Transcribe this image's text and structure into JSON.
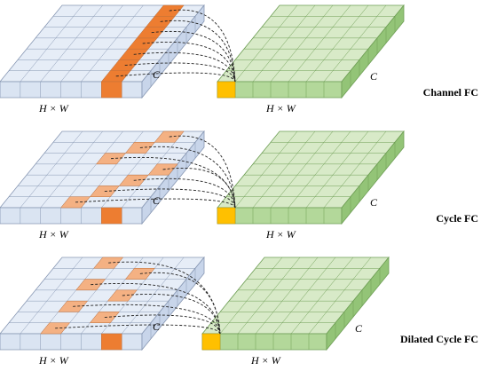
{
  "panels": [
    {
      "name": "Channel FC",
      "left_c": "C",
      "left_hw": "H × W",
      "right_c": "C",
      "right_hw": "H × W"
    },
    {
      "name": "Cycle FC",
      "left_c": "C",
      "left_hw": "H × W",
      "right_c": "C",
      "right_hw": "H × W"
    },
    {
      "name": "Dilated Cycle FC",
      "left_c": "C",
      "left_hw": "H × W",
      "right_c": "C",
      "right_hw": "H × W"
    }
  ]
}
